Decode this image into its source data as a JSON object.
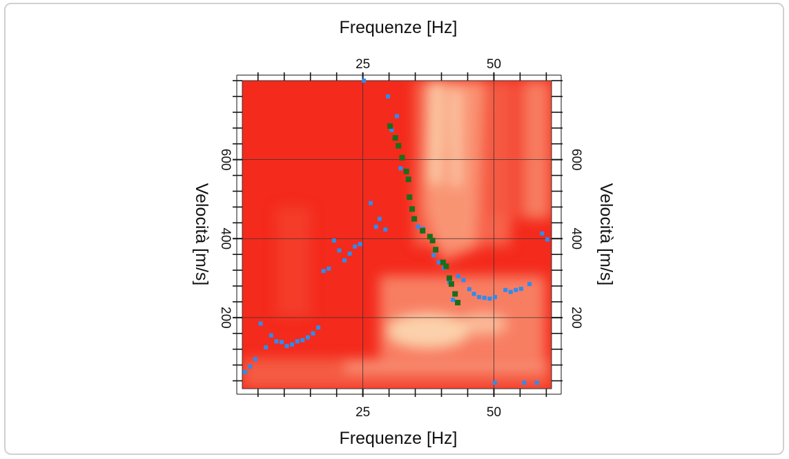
{
  "chart_data": {
    "type": "scatter",
    "subtype": "dispersion-spectrum-heatmap-with-picks",
    "xlabel_top": "Frequenze [Hz]",
    "xlabel_bottom": "Frequenze [Hz]",
    "ylabel_left": "Velocità [m/s]",
    "ylabel_right": "Velocità [m/s]",
    "xlim": [
      2,
      61
    ],
    "ylim": [
      20,
      800
    ],
    "x_ticks": [
      25,
      50
    ],
    "y_ticks": [
      200,
      400,
      600
    ],
    "grid": true,
    "colors": {
      "heat_background": "#f42a1c",
      "heat_high": "#fbe0b8",
      "blue_points": "#2d8cf0",
      "green_points": "#1b6d1b"
    },
    "series": [
      {
        "values": [
          [
            2.5,
            62
          ],
          [
            3.5,
            76
          ],
          [
            4.5,
            95
          ],
          [
            5.5,
            185
          ],
          [
            6.5,
            125
          ],
          [
            7.5,
            155
          ],
          [
            8.5,
            140
          ],
          [
            9.5,
            138
          ],
          [
            10.5,
            128
          ],
          [
            11.5,
            132
          ],
          [
            12.5,
            140
          ],
          [
            13.5,
            143
          ],
          [
            14.5,
            150
          ],
          [
            15.5,
            160
          ],
          [
            16.5,
            175
          ],
          [
            17.5,
            318
          ],
          [
            18.5,
            324
          ],
          [
            19.5,
            395
          ],
          [
            20.5,
            370
          ],
          [
            21.5,
            345
          ],
          [
            22.5,
            362
          ],
          [
            23.5,
            380
          ],
          [
            24.5,
            386
          ],
          [
            25.2,
            800
          ],
          [
            26.5,
            490
          ],
          [
            27.5,
            430
          ],
          [
            28.2,
            450
          ],
          [
            29.3,
            423
          ],
          [
            29.8,
            760
          ],
          [
            30.5,
            675
          ],
          [
            31.5,
            710
          ],
          [
            32.2,
            578
          ],
          [
            35.5,
            430
          ],
          [
            36.5,
            425
          ],
          [
            38.5,
            358
          ],
          [
            39.5,
            340
          ],
          [
            40.5,
            326
          ],
          [
            41.5,
            290
          ],
          [
            42.2,
            245
          ],
          [
            43.2,
            305
          ],
          [
            44.2,
            295
          ],
          [
            45.3,
            272
          ],
          [
            46.2,
            260
          ],
          [
            47.2,
            252
          ],
          [
            48.2,
            250
          ],
          [
            49.2,
            248
          ],
          [
            50.2,
            252
          ],
          [
            50.2,
            35
          ],
          [
            52.2,
            270
          ],
          [
            53.2,
            265
          ],
          [
            54.2,
            270
          ],
          [
            55.2,
            273
          ],
          [
            55.8,
            35
          ],
          [
            56.8,
            285
          ],
          [
            58.2,
            35
          ],
          [
            59.2,
            413
          ],
          [
            60.2,
            398
          ]
        ]
      },
      {
        "values": [
          [
            30.2,
            685
          ],
          [
            31.2,
            655
          ],
          [
            31.8,
            635
          ],
          [
            32.5,
            605
          ],
          [
            33.3,
            570
          ],
          [
            33.7,
            550
          ],
          [
            33.9,
            505
          ],
          [
            34.4,
            475
          ],
          [
            34.8,
            450
          ],
          [
            36.4,
            420
          ],
          [
            37.8,
            405
          ],
          [
            38.3,
            395
          ],
          [
            38.9,
            372
          ],
          [
            40.3,
            340
          ],
          [
            40.9,
            330
          ],
          [
            41.5,
            300
          ],
          [
            41.9,
            285
          ],
          [
            42.6,
            260
          ],
          [
            43.1,
            238
          ]
        ]
      }
    ]
  }
}
